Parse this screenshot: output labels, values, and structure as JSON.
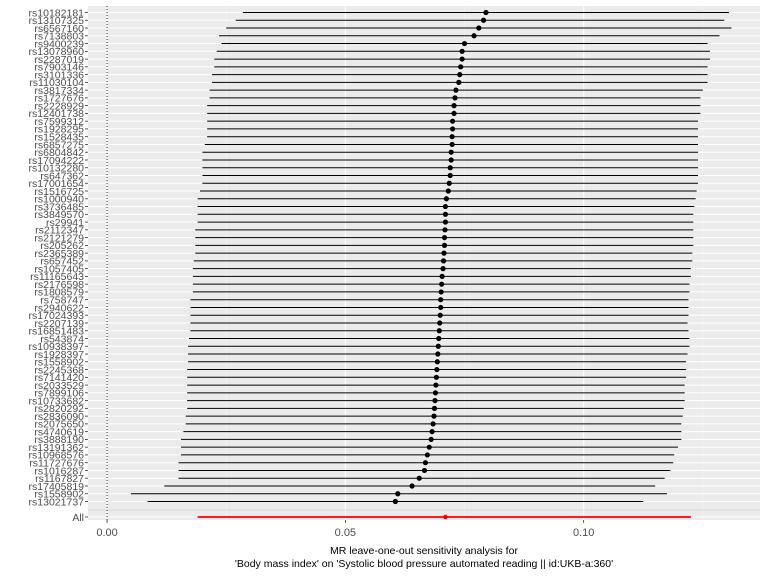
{
  "chart_data": {
    "type": "forest",
    "title": "",
    "xlabel_line1": "MR leave-one-out sensitivity analysis for",
    "xlabel_line2": "'Body mass index' on 'Systolic blood pressure  automated reading || id:UKB-a:360'",
    "ylabel": "",
    "xlim": [
      -0.004,
      0.137
    ],
    "x_ticks": [
      0.0,
      0.05,
      0.1
    ],
    "x_tick_labels": [
      "0.00",
      "0.05",
      "0.10"
    ],
    "reference_line_x": 0,
    "colors": {
      "snp": "#000000",
      "all": "#ff0000",
      "panel_bg": "#ebebeb",
      "grid": "#ffffff"
    },
    "snps": [
      {
        "snp": "rs10182181",
        "b": 0.0795,
        "lo": 0.0285,
        "hi": 0.1305
      },
      {
        "snp": "rs13107325",
        "b": 0.079,
        "lo": 0.027,
        "hi": 0.1295
      },
      {
        "snp": "rs6567160",
        "b": 0.078,
        "lo": 0.025,
        "hi": 0.131
      },
      {
        "snp": "rs7138803",
        "b": 0.077,
        "lo": 0.0235,
        "hi": 0.1285
      },
      {
        "snp": "rs9400239",
        "b": 0.075,
        "lo": 0.024,
        "hi": 0.126
      },
      {
        "snp": "rs13078960",
        "b": 0.0745,
        "lo": 0.023,
        "hi": 0.1265
      },
      {
        "snp": "rs2287019",
        "b": 0.0745,
        "lo": 0.0225,
        "hi": 0.1265
      },
      {
        "snp": "rs7903146",
        "b": 0.0742,
        "lo": 0.0225,
        "hi": 0.126
      },
      {
        "snp": "rs3101336",
        "b": 0.074,
        "lo": 0.022,
        "hi": 0.126
      },
      {
        "snp": "rs11030104",
        "b": 0.0738,
        "lo": 0.022,
        "hi": 0.126
      },
      {
        "snp": "rs3817334",
        "b": 0.0732,
        "lo": 0.0215,
        "hi": 0.125
      },
      {
        "snp": "rs1727676",
        "b": 0.073,
        "lo": 0.0215,
        "hi": 0.1245
      },
      {
        "snp": "rs2228929",
        "b": 0.0728,
        "lo": 0.021,
        "hi": 0.1245
      },
      {
        "snp": "rs12401738",
        "b": 0.0728,
        "lo": 0.021,
        "hi": 0.1245
      },
      {
        "snp": "rs7599312",
        "b": 0.0725,
        "lo": 0.021,
        "hi": 0.124
      },
      {
        "snp": "rs1928295",
        "b": 0.0725,
        "lo": 0.021,
        "hi": 0.124
      },
      {
        "snp": "rs1528435",
        "b": 0.0724,
        "lo": 0.021,
        "hi": 0.124
      },
      {
        "snp": "rs6857275",
        "b": 0.0724,
        "lo": 0.0205,
        "hi": 0.124
      },
      {
        "snp": "rs6804842",
        "b": 0.0722,
        "lo": 0.02,
        "hi": 0.124
      },
      {
        "snp": "rs17094222",
        "b": 0.0722,
        "lo": 0.02,
        "hi": 0.124
      },
      {
        "snp": "rs10132280",
        "b": 0.072,
        "lo": 0.02,
        "hi": 0.124
      },
      {
        "snp": "rs647362",
        "b": 0.072,
        "lo": 0.02,
        "hi": 0.124
      },
      {
        "snp": "rs17001654",
        "b": 0.0718,
        "lo": 0.02,
        "hi": 0.124
      },
      {
        "snp": "rs1516725",
        "b": 0.0716,
        "lo": 0.0195,
        "hi": 0.1237
      },
      {
        "snp": "rs1000940",
        "b": 0.0712,
        "lo": 0.019,
        "hi": 0.1235
      },
      {
        "snp": "rs3736485",
        "b": 0.071,
        "lo": 0.019,
        "hi": 0.1232
      },
      {
        "snp": "rs3849570",
        "b": 0.071,
        "lo": 0.019,
        "hi": 0.123
      },
      {
        "snp": "rs29941",
        "b": 0.071,
        "lo": 0.019,
        "hi": 0.123
      },
      {
        "snp": "rs2112347",
        "b": 0.0709,
        "lo": 0.0185,
        "hi": 0.123
      },
      {
        "snp": "rs2121279",
        "b": 0.0708,
        "lo": 0.0185,
        "hi": 0.123
      },
      {
        "snp": "rs205262",
        "b": 0.0708,
        "lo": 0.0185,
        "hi": 0.123
      },
      {
        "snp": "rs2365389",
        "b": 0.0707,
        "lo": 0.0185,
        "hi": 0.1228
      },
      {
        "snp": "rs657452",
        "b": 0.0706,
        "lo": 0.0182,
        "hi": 0.1228
      },
      {
        "snp": "rs1057405",
        "b": 0.0705,
        "lo": 0.018,
        "hi": 0.1225
      },
      {
        "snp": "rs11165643",
        "b": 0.0703,
        "lo": 0.018,
        "hi": 0.1225
      },
      {
        "snp": "rs2176598",
        "b": 0.0702,
        "lo": 0.018,
        "hi": 0.1222
      },
      {
        "snp": "rs1808579",
        "b": 0.0701,
        "lo": 0.018,
        "hi": 0.1222
      },
      {
        "snp": "rs758747",
        "b": 0.07,
        "lo": 0.0175,
        "hi": 0.122
      },
      {
        "snp": "rs2940622",
        "b": 0.07,
        "lo": 0.0175,
        "hi": 0.122
      },
      {
        "snp": "rs17024393",
        "b": 0.0699,
        "lo": 0.0175,
        "hi": 0.122
      },
      {
        "snp": "rs2207139",
        "b": 0.0698,
        "lo": 0.0175,
        "hi": 0.1218
      },
      {
        "snp": "rs16851483",
        "b": 0.0697,
        "lo": 0.0175,
        "hi": 0.122
      },
      {
        "snp": "rs543874",
        "b": 0.0696,
        "lo": 0.0172,
        "hi": 0.1222
      },
      {
        "snp": "rs10938397",
        "b": 0.0695,
        "lo": 0.017,
        "hi": 0.1222
      },
      {
        "snp": "rs1928397",
        "b": 0.0694,
        "lo": 0.017,
        "hi": 0.1218
      },
      {
        "snp": "rs1558902",
        "b": 0.0693,
        "lo": 0.017,
        "hi": 0.1215
      },
      {
        "snp": "rs2245368",
        "b": 0.0692,
        "lo": 0.0168,
        "hi": 0.1215
      },
      {
        "snp": "rs7141420",
        "b": 0.0691,
        "lo": 0.0168,
        "hi": 0.1215
      },
      {
        "snp": "rs2033529",
        "b": 0.069,
        "lo": 0.0168,
        "hi": 0.1212
      },
      {
        "snp": "rs7899106",
        "b": 0.0689,
        "lo": 0.0168,
        "hi": 0.1212
      },
      {
        "snp": "rs10733682",
        "b": 0.0688,
        "lo": 0.0168,
        "hi": 0.1212
      },
      {
        "snp": "rs2820292",
        "b": 0.0687,
        "lo": 0.0168,
        "hi": 0.121
      },
      {
        "snp": "rs2836090",
        "b": 0.0686,
        "lo": 0.0165,
        "hi": 0.1208
      },
      {
        "snp": "rs2075650",
        "b": 0.0684,
        "lo": 0.0165,
        "hi": 0.1205
      },
      {
        "snp": "rs4740619",
        "b": 0.0682,
        "lo": 0.016,
        "hi": 0.1205
      },
      {
        "snp": "rs3888190",
        "b": 0.068,
        "lo": 0.0155,
        "hi": 0.1205
      },
      {
        "snp": "rs13191362",
        "b": 0.0676,
        "lo": 0.0155,
        "hi": 0.1198
      },
      {
        "snp": "rs10968576",
        "b": 0.0672,
        "lo": 0.0155,
        "hi": 0.119
      },
      {
        "snp": "rs11727676",
        "b": 0.0668,
        "lo": 0.015,
        "hi": 0.1188
      },
      {
        "snp": "rs1016287",
        "b": 0.0666,
        "lo": 0.015,
        "hi": 0.1182
      },
      {
        "snp": "rs1167827",
        "b": 0.0655,
        "lo": 0.015,
        "hi": 0.117
      },
      {
        "snp": "rs17405819",
        "b": 0.064,
        "lo": 0.012,
        "hi": 0.115
      },
      {
        "snp": "rs1558902",
        "b": 0.061,
        "lo": 0.005,
        "hi": 0.1175
      },
      {
        "snp": "rs13021737",
        "b": 0.0605,
        "lo": 0.0085,
        "hi": 0.1125
      }
    ],
    "all": {
      "snp": "All",
      "b": 0.071,
      "lo": 0.019,
      "hi": 0.1225
    }
  }
}
